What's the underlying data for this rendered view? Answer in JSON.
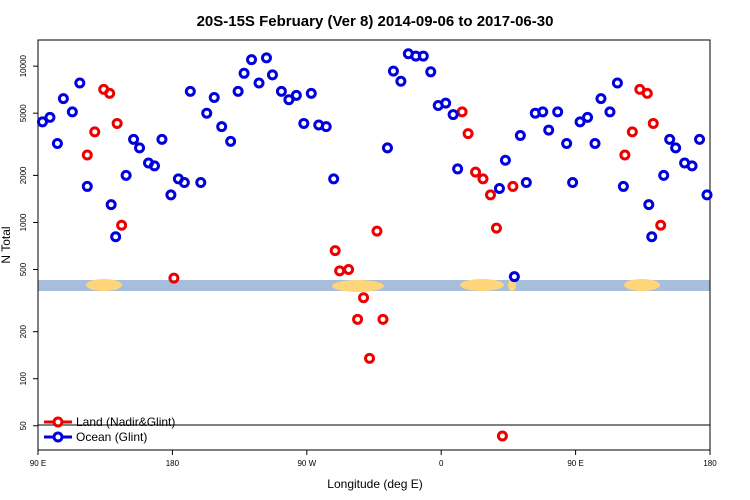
{
  "chart_data": {
    "type": "scatter",
    "title": "20S-15S February (Ver 8)   2014-09-06 to 2017-06-30",
    "x_label": "Longitude (deg E)",
    "y_label": "N Total",
    "log_y": true,
    "xlim": [
      90,
      540
    ],
    "ylim": [
      35,
      14700
    ],
    "xticks": [
      {
        "value": 90,
        "label": "90 E"
      },
      180,
      {
        "value": 270,
        "label": "90 W"
      },
      {
        "value": 360,
        "label": "0"
      },
      {
        "value": 450,
        "label": "90 E"
      },
      {
        "value": 540,
        "label": "180"
      }
    ],
    "yticks": [
      50,
      100,
      200,
      500,
      1000,
      2000,
      5000,
      10000
    ],
    "legend": "bottom-left",
    "series": [
      {
        "name": "Land (Nadir&Glint)",
        "color": "#ee0000",
        "x": [
          134,
          138,
          128,
          123,
          143,
          146,
          181,
          289,
          292,
          298,
          304,
          308,
          312,
          317,
          321,
          374,
          378,
          383,
          388,
          393,
          397,
          408,
          401,
          493,
          498,
          488,
          483,
          502,
          507
        ],
        "values": [
          7100,
          6700,
          3800,
          2700,
          4300,
          960,
          440,
          660,
          490,
          500,
          240,
          330,
          135,
          880,
          240,
          5100,
          3700,
          2100,
          1900,
          1500,
          920,
          1700,
          43,
          7100,
          6700,
          3800,
          2700,
          4300,
          960
        ]
      },
      {
        "name": "Ocean (Glint)",
        "color": "#0000dd",
        "x": [
          93,
          98,
          103,
          107,
          113,
          118,
          123,
          139,
          142,
          149,
          154,
          158,
          164,
          168,
          173,
          179,
          184,
          188,
          192,
          199,
          203,
          208,
          213,
          219,
          224,
          228,
          233,
          238,
          243,
          247,
          253,
          258,
          263,
          268,
          273,
          278,
          283,
          288,
          324,
          328,
          333,
          338,
          343,
          348,
          353,
          358,
          363,
          368,
          371,
          399,
          403,
          409,
          413,
          417,
          423,
          428,
          432,
          438,
          444,
          448,
          453,
          458,
          463,
          467,
          473,
          478,
          482,
          499,
          501,
          509,
          513,
          517,
          523,
          528,
          533,
          538
        ],
        "values": [
          4400,
          4700,
          3200,
          6200,
          5100,
          7800,
          1700,
          1300,
          810,
          2000,
          3400,
          3000,
          2400,
          2300,
          3400,
          1500,
          1900,
          1800,
          6900,
          1800,
          5000,
          6300,
          4100,
          3300,
          6900,
          9000,
          11000,
          7800,
          11300,
          8800,
          6900,
          6100,
          6500,
          4300,
          6700,
          4200,
          4100,
          1900,
          3000,
          9300,
          8000,
          12000,
          11600,
          11600,
          9200,
          5600,
          5800,
          4900,
          2200,
          1650,
          2500,
          450,
          3600,
          1800,
          5000,
          5100,
          3900,
          5100,
          3200,
          1800,
          4400,
          4700,
          3200,
          6200,
          5100,
          7800,
          1700,
          1300,
          810,
          2000,
          3400,
          3000,
          2400,
          2300,
          3400,
          1500
        ]
      }
    ]
  }
}
